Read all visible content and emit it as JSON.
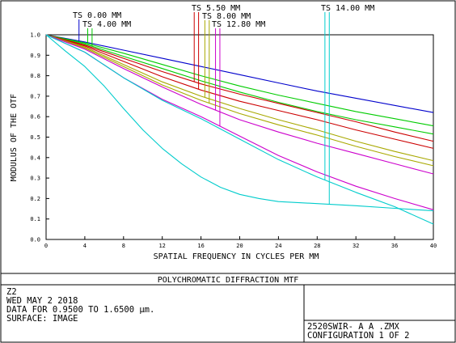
{
  "chart_data": {
    "type": "line",
    "title": "POLYCHROMATIC DIFFRACTION MTF",
    "xlabel": "SPATIAL FREQUENCY IN CYCLES PER MM",
    "ylabel": "MODULUS OF THE OTF",
    "xlim": [
      0,
      40
    ],
    "ylim": [
      0,
      1
    ],
    "x_ticks": [
      "0",
      "4",
      "8",
      "12",
      "16",
      "20",
      "24",
      "28",
      "32",
      "36",
      "40"
    ],
    "y_ticks": [
      "0.0",
      "0.1",
      "0.2",
      "0.3",
      "0.4",
      "0.5",
      "0.6",
      "0.7",
      "0.8",
      "0.9",
      "1.0"
    ],
    "grid": false,
    "field_labels": [
      {
        "text": "TS 0.00 MM",
        "color": "#0000cc",
        "x": 3.4
      },
      {
        "text": "TS 4.00 MM",
        "color": "#00cc00",
        "x": 4.3
      },
      {
        "text": "TS 5.50 MM",
        "color": "#cc0000",
        "x": 15.3
      },
      {
        "text": "TS 8.00 MM",
        "color": "#a8a800",
        "x": 16.4
      },
      {
        "text": "TS 12.80 MM",
        "color": "#cc00cc",
        "x": 17.5
      },
      {
        "text": "TS 14.00 MM",
        "color": "#00cccc",
        "x": 28.8
      }
    ],
    "series": [
      {
        "color": "#0000cc",
        "x": [
          0,
          4,
          8,
          12,
          16,
          20,
          24,
          28,
          32,
          36,
          40
        ],
        "y": [
          1.0,
          0.965,
          0.925,
          0.885,
          0.845,
          0.805,
          0.765,
          0.725,
          0.69,
          0.655,
          0.62
        ]
      },
      {
        "color": "#00cc00",
        "x": [
          0,
          4,
          8,
          12,
          16,
          20,
          24,
          28,
          32,
          36,
          40
        ],
        "y": [
          1.0,
          0.96,
          0.91,
          0.855,
          0.8,
          0.75,
          0.705,
          0.665,
          0.625,
          0.59,
          0.555
        ]
      },
      {
        "color": "#00cc00",
        "x": [
          0,
          4,
          8,
          12,
          16,
          20,
          24,
          28,
          32,
          36,
          40
        ],
        "y": [
          1.0,
          0.955,
          0.895,
          0.835,
          0.775,
          0.72,
          0.67,
          0.625,
          0.585,
          0.55,
          0.515
        ]
      },
      {
        "color": "#cc0000",
        "x": [
          0,
          4,
          8,
          12,
          16,
          20,
          24,
          28,
          32,
          36,
          40
        ],
        "y": [
          1.0,
          0.95,
          0.885,
          0.82,
          0.76,
          0.71,
          0.665,
          0.62,
          0.575,
          0.525,
          0.48
        ]
      },
      {
        "color": "#cc0000",
        "x": [
          0,
          4,
          8,
          12,
          16,
          20,
          24,
          28,
          32,
          36,
          40
        ],
        "y": [
          1.0,
          0.945,
          0.87,
          0.795,
          0.73,
          0.675,
          0.63,
          0.585,
          0.535,
          0.49,
          0.445
        ]
      },
      {
        "color": "#a8a800",
        "x": [
          0,
          4,
          8,
          12,
          16,
          20,
          24,
          28,
          32,
          36,
          40
        ],
        "y": [
          1.0,
          0.94,
          0.855,
          0.77,
          0.7,
          0.64,
          0.585,
          0.535,
          0.48,
          0.43,
          0.385
        ]
      },
      {
        "color": "#a8a800",
        "x": [
          0,
          4,
          8,
          12,
          16,
          20,
          24,
          28,
          32,
          36,
          40
        ],
        "y": [
          1.0,
          0.935,
          0.845,
          0.755,
          0.68,
          0.615,
          0.56,
          0.51,
          0.455,
          0.405,
          0.36
        ]
      },
      {
        "color": "#cc00cc",
        "x": [
          0,
          4,
          8,
          12,
          16,
          20,
          24,
          28,
          32,
          36,
          40
        ],
        "y": [
          1.0,
          0.93,
          0.835,
          0.745,
          0.66,
          0.585,
          0.525,
          0.47,
          0.42,
          0.37,
          0.32
        ]
      },
      {
        "color": "#cc00cc",
        "x": [
          0,
          4,
          8,
          12,
          16,
          20,
          24,
          28,
          32,
          36,
          40
        ],
        "y": [
          1.0,
          0.915,
          0.79,
          0.685,
          0.6,
          0.505,
          0.41,
          0.33,
          0.26,
          0.2,
          0.145
        ]
      },
      {
        "color": "#00cccc",
        "x": [
          0,
          4,
          8,
          12,
          16,
          20,
          24,
          28,
          32,
          36,
          40
        ],
        "y": [
          1.0,
          0.915,
          0.79,
          0.68,
          0.59,
          0.49,
          0.39,
          0.305,
          0.23,
          0.16,
          0.075
        ]
      },
      {
        "color": "#00cccc",
        "x": [
          0,
          2,
          4,
          6,
          8,
          10,
          12,
          14,
          16,
          18,
          20,
          22,
          24,
          28,
          32,
          36,
          40
        ],
        "y": [
          1.0,
          0.92,
          0.845,
          0.75,
          0.64,
          0.535,
          0.445,
          0.37,
          0.305,
          0.255,
          0.22,
          0.2,
          0.185,
          0.175,
          0.165,
          0.152,
          0.14
        ]
      }
    ]
  },
  "info": {
    "lines": [
      "Z2",
      "WED MAY 2 2018",
      "DATA FOR 0.9500 TO 1.6500 µm.",
      "SURFACE: IMAGE"
    ],
    "file": "2520SWIR- A  A .ZMX",
    "config": "CONFIGURATION 1 OF 2"
  }
}
